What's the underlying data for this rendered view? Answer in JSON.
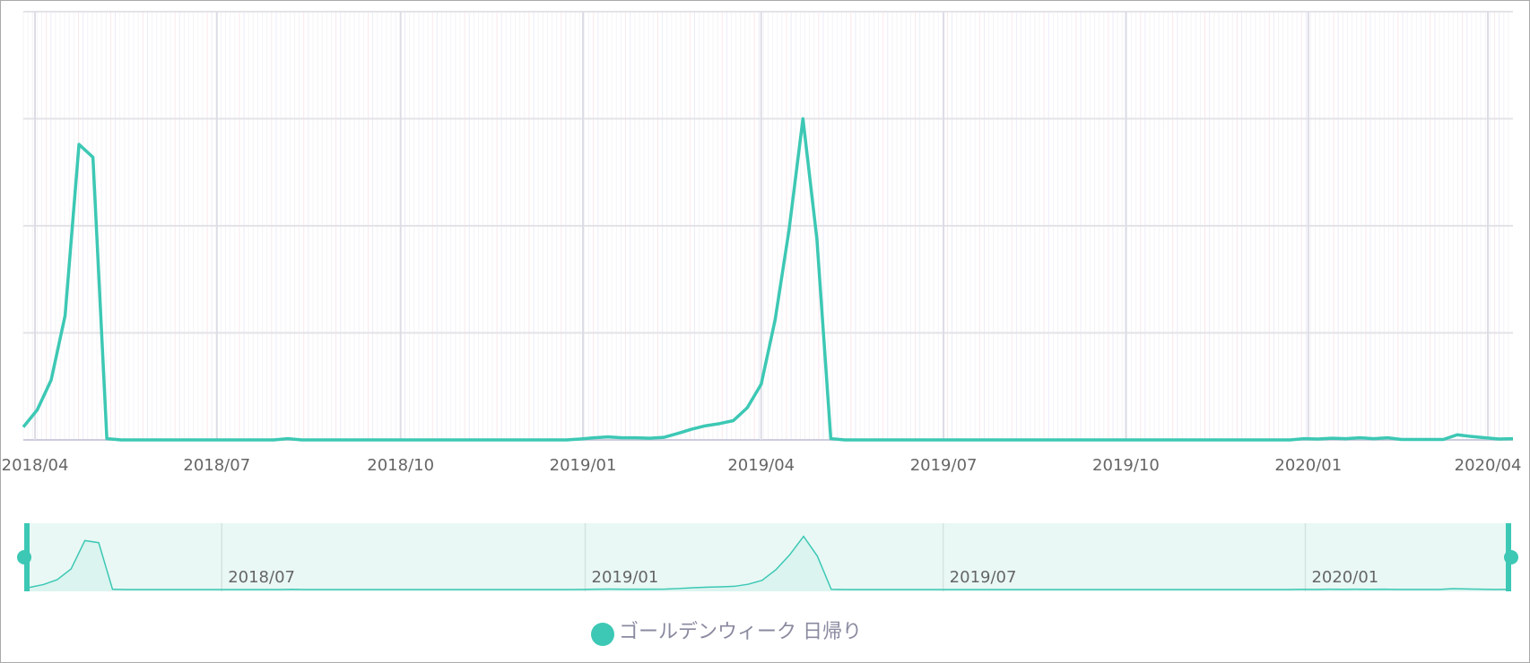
{
  "chart_data": {
    "type": "line",
    "xlim": [
      0,
      107
    ],
    "ylim": [
      0,
      100
    ],
    "xticks": [
      {
        "value": 0.84,
        "label": "2018/04"
      },
      {
        "value": 13.9,
        "label": "2018/07"
      },
      {
        "value": 27.1,
        "label": "2018/10"
      },
      {
        "value": 40.2,
        "label": "2019/01"
      },
      {
        "value": 53.0,
        "label": "2019/04"
      },
      {
        "value": 66.1,
        "label": "2019/07"
      },
      {
        "value": 79.2,
        "label": "2019/10"
      },
      {
        "value": 92.3,
        "label": "2020/01"
      },
      {
        "value": 105.2,
        "label": "2020/04"
      }
    ],
    "series": [
      {
        "name": "ゴールデンウィーク 日帰り",
        "color": "#3cc8b4",
        "values": [
          3,
          7,
          14,
          29,
          69,
          66,
          0.3,
          0,
          0,
          0,
          0,
          0,
          0,
          0,
          0,
          0,
          0,
          0,
          0,
          0.3,
          0,
          0,
          0,
          0,
          0,
          0,
          0,
          0,
          0,
          0,
          0,
          0,
          0,
          0,
          0,
          0,
          0,
          0,
          0,
          0,
          0.2,
          0.5,
          0.7,
          0.5,
          0.5,
          0.4,
          0.6,
          1.5,
          2.5,
          3.3,
          3.8,
          4.5,
          7.5,
          13,
          28,
          49,
          75,
          47,
          0.3,
          0,
          0,
          0,
          0,
          0,
          0,
          0,
          0,
          0,
          0,
          0,
          0,
          0,
          0,
          0,
          0,
          0,
          0,
          0,
          0,
          0,
          0,
          0,
          0,
          0,
          0,
          0,
          0,
          0,
          0,
          0,
          0,
          0,
          0.3,
          0.2,
          0.4,
          0.3,
          0.5,
          0.3,
          0.5,
          0.1,
          0.1,
          0.1,
          0.1,
          1.2,
          0.8,
          0.5,
          0.2,
          0.3
        ]
      }
    ]
  }
}
